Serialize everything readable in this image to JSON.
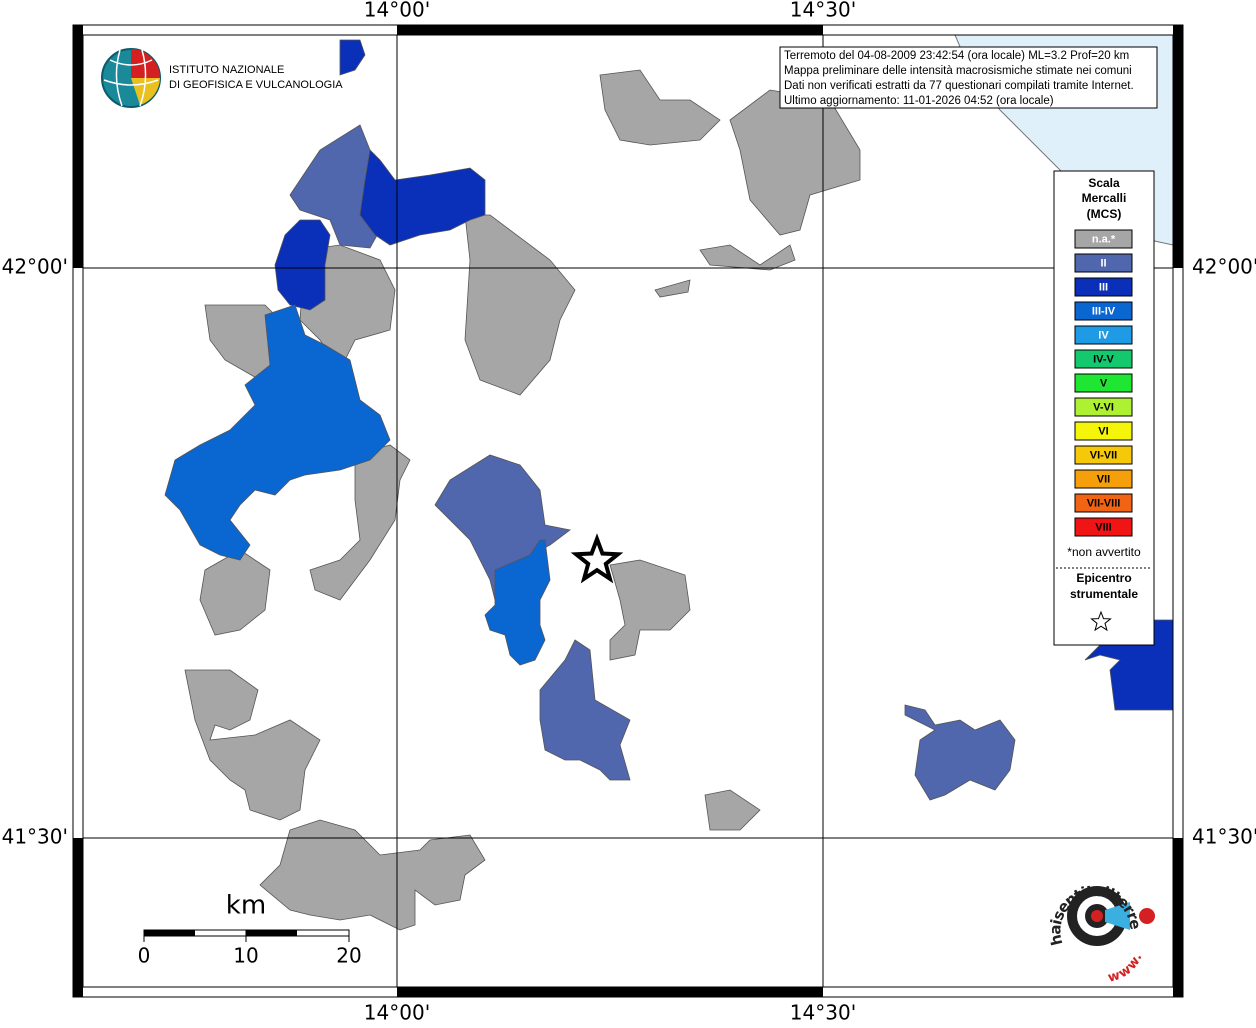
{
  "header": {
    "logo_lines": [
      "ISTITUTO NAZIONALE",
      "DI GEOFISICA E VULCANOLOGIA"
    ]
  },
  "info_box": {
    "lines": [
      "Terremoto del 04-08-2009 23:42:54 (ora locale) ML=3.2 Prof=20 km",
      "Mappa preliminare delle intensità macrosismiche stimate nei comuni",
      "Dati non verificati estratti da 77 questionari compilati tramite Internet.",
      "Ultimo aggiornamento: 11-01-2026 04:52 (ora locale)"
    ]
  },
  "map": {
    "lon_labels": [
      "14°00'",
      "14°30'"
    ],
    "lat_labels": [
      "42°00'",
      "41°30'"
    ]
  },
  "legend": {
    "title_lines": [
      "Scala",
      "Mercalli",
      "(MCS)"
    ],
    "items": [
      {
        "label": "n.a.*",
        "color": "#a6a6a6"
      },
      {
        "label": "II",
        "color": "#5066ad"
      },
      {
        "label": "III",
        "color": "#0a2fb8"
      },
      {
        "label": "III-IV",
        "color": "#0a66d0"
      },
      {
        "label": "IV",
        "color": "#1f9be6"
      },
      {
        "label": "IV-V",
        "color": "#14c86e"
      },
      {
        "label": "V",
        "color": "#1ee632"
      },
      {
        "label": "V-VI",
        "color": "#aef032"
      },
      {
        "label": "VI",
        "color": "#f5f50a"
      },
      {
        "label": "VI-VII",
        "color": "#f5c80a"
      },
      {
        "label": "VII",
        "color": "#f5a00a"
      },
      {
        "label": "VII-VIII",
        "color": "#f06414"
      },
      {
        "label": "VIII",
        "color": "#f01414"
      }
    ],
    "footnote": "*non avvertito",
    "epicenter_lines": [
      "Epicentro",
      "strumentale"
    ]
  },
  "scale_bar": {
    "unit": "km",
    "labels": [
      0,
      10,
      20
    ]
  },
  "badge": {
    "text": "haisentitoilterremoto.it",
    "prefix": "www."
  }
}
